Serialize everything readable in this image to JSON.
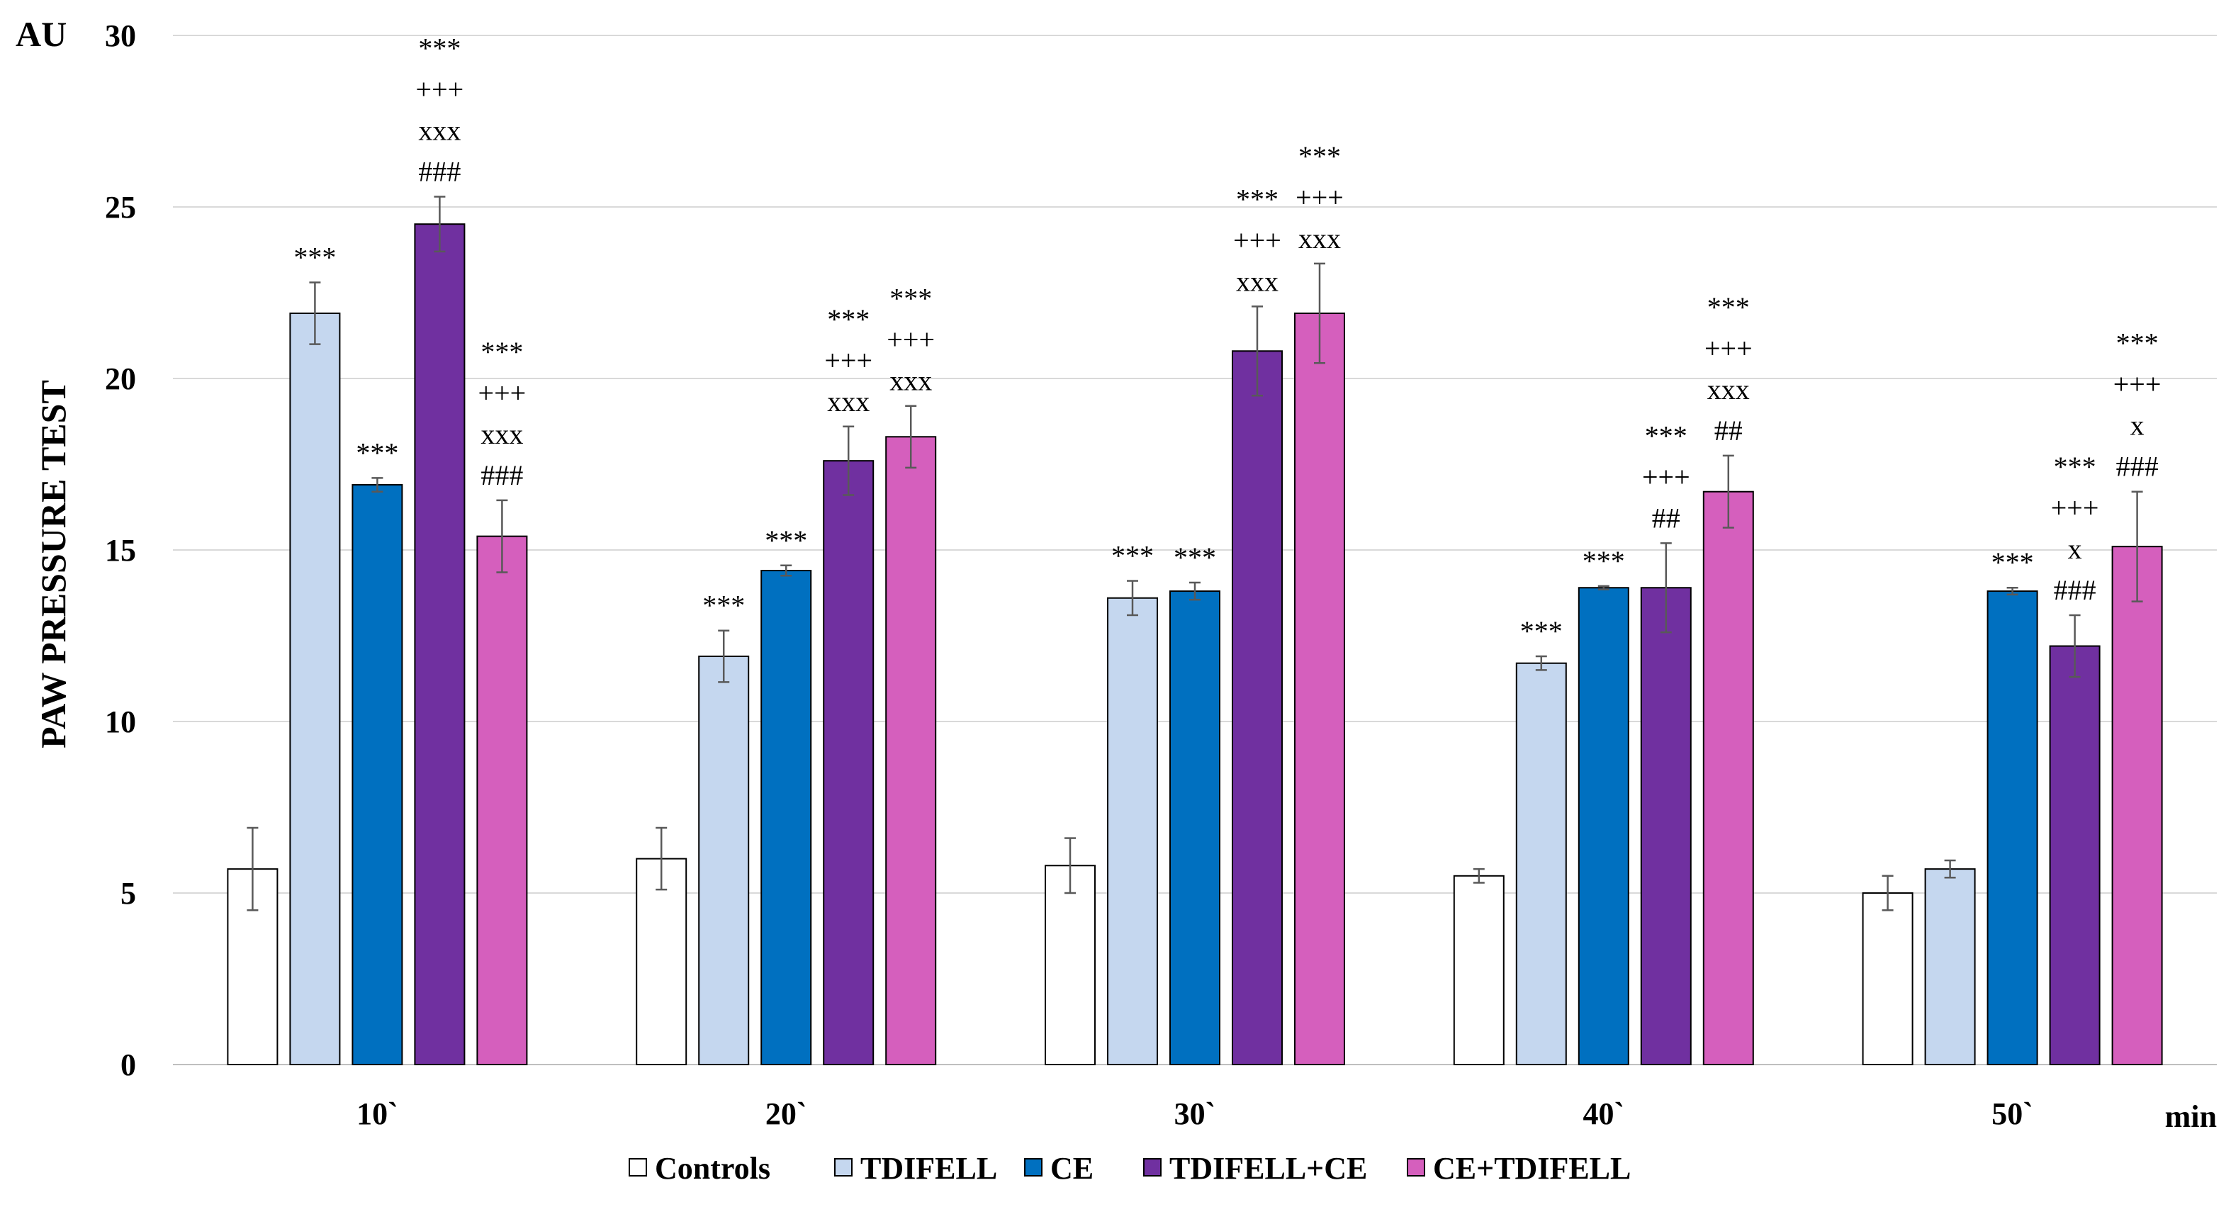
{
  "chart_data": {
    "type": "bar",
    "ylabel": "PAW   PRESSURE   TEST",
    "yunit": "AU",
    "xunit": "min",
    "ylim": [
      0,
      30
    ],
    "ytick_labels": [
      "0",
      "5",
      "10",
      "15",
      "20",
      "25",
      "30"
    ],
    "categories": [
      "10`",
      "20`",
      "30`",
      "40`",
      "50`"
    ],
    "grid": true,
    "legend_position": "bottom",
    "series": [
      {
        "name": "Controls",
        "color": "#ffffff",
        "values": [
          5.7,
          6.0,
          5.8,
          5.5,
          5.0
        ],
        "errors": [
          1.2,
          0.9,
          0.8,
          0.2,
          0.5
        ],
        "annotations": [
          [],
          [],
          [],
          [],
          []
        ]
      },
      {
        "name": "TDIFELL",
        "color": "#c5d7ef",
        "values": [
          21.9,
          11.9,
          13.6,
          11.7,
          5.7
        ],
        "errors": [
          0.9,
          0.75,
          0.5,
          0.2,
          0.25
        ],
        "annotations": [
          [
            "***"
          ],
          [
            "***"
          ],
          [
            "***"
          ],
          [
            "***"
          ],
          []
        ]
      },
      {
        "name": "CE",
        "color": "#0070c0",
        "values": [
          16.9,
          14.4,
          13.8,
          13.9,
          13.8
        ],
        "errors": [
          0.2,
          0.15,
          0.25,
          0.05,
          0.1
        ],
        "annotations": [
          [
            "***"
          ],
          [
            "***"
          ],
          [
            "***"
          ],
          [
            "***"
          ],
          [
            "***"
          ]
        ]
      },
      {
        "name": "TDIFELL+CE",
        "color": "#7030a0",
        "values": [
          24.5,
          17.6,
          20.8,
          13.9,
          12.2
        ],
        "errors": [
          0.8,
          1.0,
          1.3,
          1.3,
          0.9
        ],
        "annotations": [
          [
            "***",
            "+++",
            "xxx",
            "###"
          ],
          [
            "***",
            "+++",
            "xxx"
          ],
          [
            "***",
            "+++",
            "xxx"
          ],
          [
            "***",
            "+++",
            "##"
          ],
          [
            "***",
            "+++",
            "x",
            "###"
          ]
        ]
      },
      {
        "name": "CE+TDIFELL",
        "color": "#d55fbd",
        "values": [
          15.4,
          18.3,
          21.9,
          16.7,
          15.1
        ],
        "errors": [
          1.05,
          0.9,
          1.45,
          1.05,
          1.6
        ],
        "annotations": [
          [
            "***",
            "+++",
            "xxx",
            "###"
          ],
          [
            "***",
            "+++",
            "xxx"
          ],
          [
            "***",
            "+++",
            "xxx"
          ],
          [
            "***",
            "+++",
            "xxx",
            "##"
          ],
          [
            "***",
            "+++",
            "x",
            "###"
          ]
        ]
      }
    ]
  }
}
